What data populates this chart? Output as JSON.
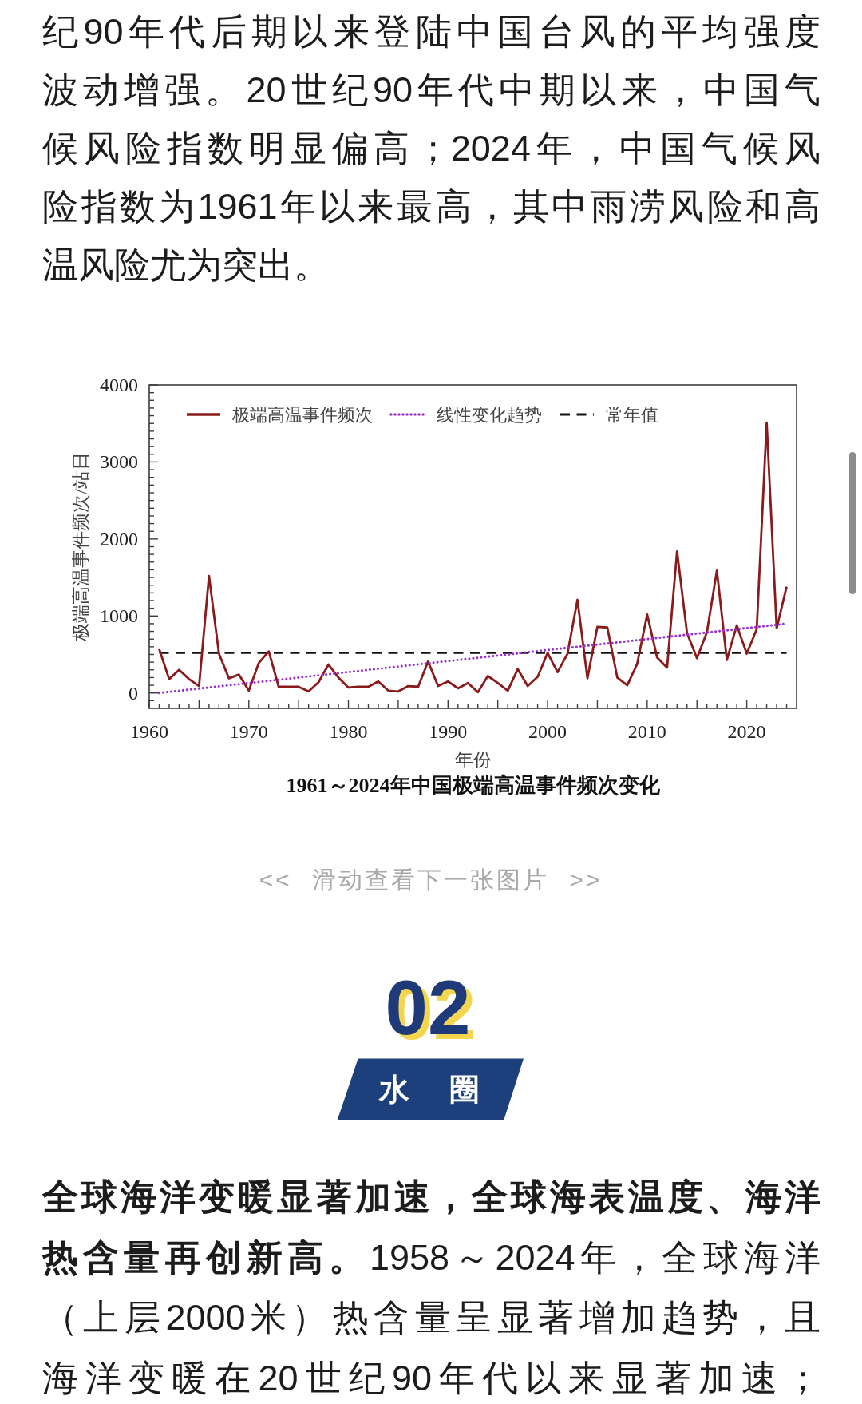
{
  "chart_data": {
    "type": "line",
    "title": "1961～2024年中国极端高温事件频次变化",
    "xlabel": "年份",
    "ylabel": "极端高温事件频次/站日",
    "x": [
      1961,
      1962,
      1963,
      1964,
      1965,
      1966,
      1967,
      1968,
      1969,
      1970,
      1971,
      1972,
      1973,
      1974,
      1975,
      1976,
      1977,
      1978,
      1979,
      1980,
      1981,
      1982,
      1983,
      1984,
      1985,
      1986,
      1987,
      1988,
      1989,
      1990,
      1991,
      1992,
      1993,
      1994,
      1995,
      1996,
      1997,
      1998,
      1999,
      2000,
      2001,
      2002,
      2003,
      2004,
      2005,
      2006,
      2007,
      2008,
      2009,
      2010,
      2011,
      2012,
      2013,
      2014,
      2015,
      2016,
      2017,
      2018,
      2019,
      2020,
      2021,
      2022,
      2023,
      2024
    ],
    "series": [
      {
        "name": "极端高温事件频次",
        "color": "#8b1a1a",
        "line_style": "solid",
        "values": [
          570,
          180,
          300,
          180,
          90,
          1520,
          510,
          190,
          240,
          30,
          390,
          540,
          80,
          80,
          80,
          20,
          140,
          370,
          200,
          70,
          80,
          80,
          150,
          30,
          20,
          90,
          80,
          410,
          90,
          150,
          60,
          130,
          10,
          220,
          130,
          30,
          310,
          90,
          210,
          520,
          270,
          510,
          1210,
          190,
          860,
          850,
          200,
          100,
          380,
          1020,
          460,
          330,
          1840,
          780,
          450,
          790,
          1590,
          430,
          880,
          510,
          830,
          3510,
          840,
          1380
        ]
      },
      {
        "name": "线性变化趋势",
        "color": "#9932cc",
        "line_style": "dotted",
        "type": "line",
        "x": [
          1961,
          2024
        ],
        "values": [
          0,
          900
        ]
      }
    ],
    "ref_lines": [
      {
        "axis": "y",
        "value": 520,
        "label": "常年值",
        "color": "#111111",
        "line_style": "dashed"
      }
    ],
    "xlim": [
      1960,
      2025
    ],
    "xticks": [
      1960,
      {
        "value": 1961,
        "label": null
      },
      {
        "value": 1962,
        "label": null
      },
      {
        "value": 1963,
        "label": null
      },
      {
        "value": 1964,
        "label": null
      },
      {
        "value": 1965,
        "label": null
      },
      {
        "value": 1966,
        "label": null
      },
      {
        "value": 1967,
        "label": null
      },
      {
        "value": 1968,
        "label": null
      },
      {
        "value": 1969,
        "label": null
      },
      1970,
      {
        "value": 1971,
        "label": null
      },
      {
        "value": 1972,
        "label": null
      },
      {
        "value": 1973,
        "label": null
      },
      {
        "value": 1974,
        "label": null
      },
      {
        "value": 1975,
        "label": null
      },
      {
        "value": 1976,
        "label": null
      },
      {
        "value": 1977,
        "label": null
      },
      {
        "value": 1978,
        "label": null
      },
      {
        "value": 1979,
        "label": null
      },
      1980,
      {
        "value": 1981,
        "label": null
      },
      {
        "value": 1982,
        "label": null
      },
      {
        "value": 1983,
        "label": null
      },
      {
        "value": 1984,
        "label": null
      },
      {
        "value": 1985,
        "label": null
      },
      {
        "value": 1986,
        "label": null
      },
      {
        "value": 1987,
        "label": null
      },
      {
        "value": 1988,
        "label": null
      },
      {
        "value": 1989,
        "label": null
      },
      1990,
      {
        "value": 1991,
        "label": null
      },
      {
        "value": 1992,
        "label": null
      },
      {
        "value": 1993,
        "label": null
      },
      {
        "value": 1994,
        "label": null
      },
      {
        "value": 1995,
        "label": null
      },
      {
        "value": 1996,
        "label": null
      },
      {
        "value": 1997,
        "label": null
      },
      {
        "value": 1998,
        "label": null
      },
      {
        "value": 1999,
        "label": null
      },
      2000,
      {
        "value": 2001,
        "label": null
      },
      {
        "value": 2002,
        "label": null
      },
      {
        "value": 2003,
        "label": null
      },
      {
        "value": 2004,
        "label": null
      },
      {
        "value": 2005,
        "label": null
      },
      {
        "value": 2006,
        "label": null
      },
      {
        "value": 2007,
        "label": null
      },
      {
        "value": 2008,
        "label": null
      },
      {
        "value": 2009,
        "label": null
      },
      2010,
      {
        "value": 2011,
        "label": null
      },
      {
        "value": 2012,
        "label": null
      },
      {
        "value": 2013,
        "label": null
      },
      {
        "value": 2014,
        "label": null
      },
      {
        "value": 2015,
        "label": null
      },
      {
        "value": 2016,
        "label": null
      },
      {
        "value": 2017,
        "label": null
      },
      {
        "value": 2018,
        "label": null
      },
      {
        "value": 2019,
        "label": null
      },
      2020,
      {
        "value": 2021,
        "label": null
      },
      {
        "value": 2022,
        "label": null
      },
      {
        "value": 2023,
        "label": null
      },
      {
        "value": 2024,
        "label": null
      }
    ],
    "ylim": [
      -200,
      4000
    ],
    "yticks": [
      {
        "value": -100,
        "label": null
      },
      0,
      {
        "value": 100,
        "label": null
      },
      {
        "value": 200,
        "label": null
      },
      {
        "value": 300,
        "label": null
      },
      {
        "value": 400,
        "label": null
      },
      {
        "value": 500,
        "label": null
      },
      {
        "value": 600,
        "label": null
      },
      {
        "value": 700,
        "label": null
      },
      {
        "value": 800,
        "label": null
      },
      {
        "value": 900,
        "label": null
      },
      1000,
      {
        "value": 1100,
        "label": null
      },
      {
        "value": 1200,
        "label": null
      },
      {
        "value": 1300,
        "label": null
      },
      {
        "value": 1400,
        "label": null
      },
      {
        "value": 1500,
        "label": null
      },
      {
        "value": 1600,
        "label": null
      },
      {
        "value": 1700,
        "label": null
      },
      {
        "value": 1800,
        "label": null
      },
      {
        "value": 1900,
        "label": null
      },
      2000,
      {
        "value": 2100,
        "label": null
      },
      {
        "value": 2200,
        "label": null
      },
      {
        "value": 2300,
        "label": null
      },
      {
        "value": 2400,
        "label": null
      },
      {
        "value": 2500,
        "label": null
      },
      {
        "value": 2600,
        "label": null
      },
      {
        "value": 2700,
        "label": null
      },
      {
        "value": 2800,
        "label": null
      },
      {
        "value": 2900,
        "label": null
      },
      3000,
      {
        "value": 3100,
        "label": null
      },
      {
        "value": 3200,
        "label": null
      },
      {
        "value": 3300,
        "label": null
      },
      {
        "value": 3400,
        "label": null
      },
      {
        "value": 3500,
        "label": null
      },
      {
        "value": 3600,
        "label": null
      },
      {
        "value": 3700,
        "label": null
      },
      {
        "value": 3800,
        "label": null
      },
      {
        "value": 3900,
        "label": null
      },
      4000
    ],
    "legend": "top left",
    "annotations": [
      "纪90年代后期以来登陆中国台风的平均强度",
      "波动增强。20世纪90年代中期以来，中国气",
      "候风险指数明显偏高；2024年，中国气候风",
      "险指数为1961年以来最高，其中雨涝风险和高",
      "温风险尤为突出。",
      "<< 滑动查看下一张图片 >>",
      "02",
      "水 圈",
      "全球海洋变暖显著加速，全球海表温度、海洋",
      "热含量再创新高。",
      "1958～2024年，全球海洋",
      "（上层2000米）热含量呈显著增加趋势，且",
      "海洋变暖在20世纪90年代以来显著加速；"
    ]
  }
}
